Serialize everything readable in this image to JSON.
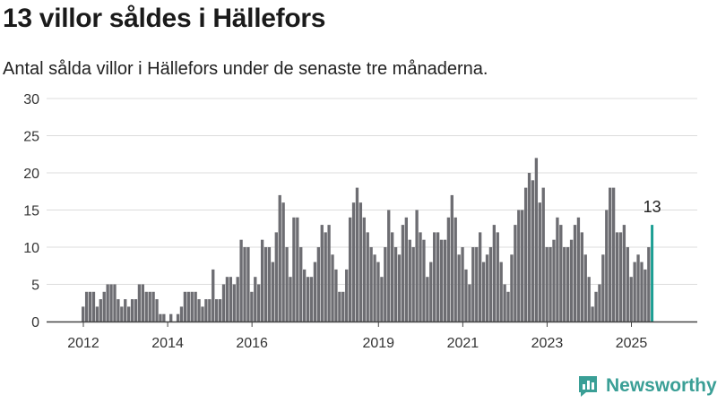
{
  "title": "13 villor såldes i Hällefors",
  "subtitle": "Antal sålda villor i Hällefors under de senaste tre månaderna.",
  "brand": {
    "name": "Newsworthy",
    "icon": "newsworthy-logo-icon"
  },
  "colors": {
    "bar": "#6d6d72",
    "highlight": "#1c9e93",
    "grid": "#dcdcdc",
    "axis": "#444444",
    "brand": "#3a9f96"
  },
  "chart_data": {
    "type": "bar",
    "x_start": "2012-01",
    "x_end": "2025-09",
    "x_ticks": [
      "2012",
      "2014",
      "2016",
      "2019",
      "2021",
      "2023",
      "2025"
    ],
    "ylim": [
      0,
      30
    ],
    "yticks": [
      0,
      5,
      10,
      15,
      20,
      25,
      30
    ],
    "values": [
      2,
      4,
      4,
      4,
      2,
      3,
      4,
      5,
      5,
      5,
      3,
      2,
      3,
      2,
      3,
      3,
      5,
      5,
      4,
      4,
      4,
      3,
      1,
      1,
      0,
      1,
      0,
      1,
      2,
      4,
      4,
      4,
      4,
      3,
      2,
      3,
      3,
      7,
      3,
      3,
      5,
      6,
      6,
      5,
      6,
      11,
      10,
      10,
      4,
      6,
      5,
      11,
      10,
      10,
      8,
      12,
      17,
      16,
      10,
      6,
      14,
      14,
      10,
      7,
      6,
      6,
      8,
      10,
      13,
      12,
      13,
      9,
      7,
      4,
      4,
      7,
      14,
      16,
      18,
      16,
      14,
      12,
      10,
      9,
      8,
      6,
      10,
      15,
      12,
      10,
      9,
      13,
      14,
      11,
      10,
      15,
      12,
      11,
      6,
      8,
      12,
      12,
      11,
      11,
      14,
      17,
      14,
      9,
      10,
      7,
      5,
      10,
      10,
      12,
      8,
      9,
      10,
      13,
      12,
      8,
      5,
      4,
      9,
      13,
      15,
      15,
      18,
      20,
      19,
      22,
      16,
      18,
      10,
      10,
      11,
      14,
      13,
      10,
      10,
      11,
      13,
      14,
      12,
      9,
      6,
      2,
      4,
      5,
      9,
      15,
      18,
      18,
      12,
      12,
      13,
      10,
      6,
      8,
      9,
      8,
      7,
      10,
      13
    ],
    "highlight_label": "13"
  }
}
